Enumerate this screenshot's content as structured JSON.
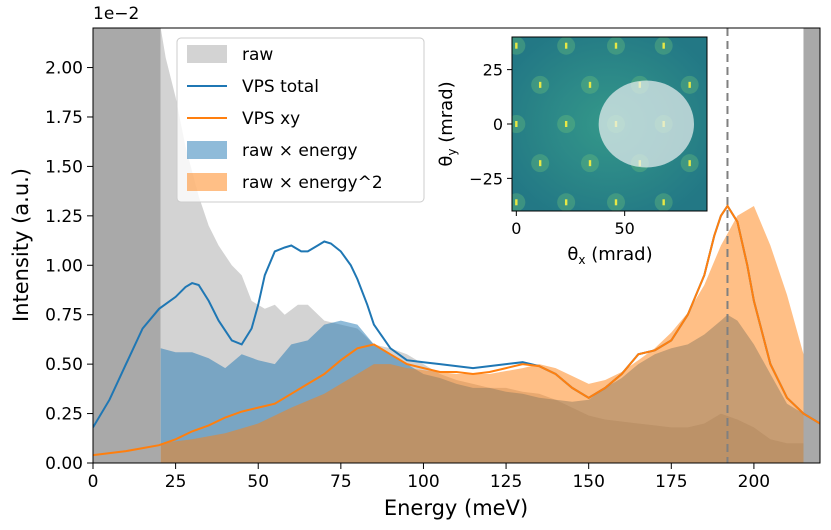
{
  "chart_data": [
    {
      "type": "area",
      "title": "",
      "xlabel": "Energy (meV)",
      "ylabel": "Intensity (a.u.)",
      "offset_text": "1e−2",
      "xlim": [
        0,
        220
      ],
      "ylim": [
        0,
        2.2
      ],
      "xticks": [
        0,
        25,
        50,
        75,
        100,
        125,
        150,
        175,
        200
      ],
      "xtick_labels": [
        "0",
        "25",
        "50",
        "75",
        "100",
        "125",
        "150",
        "175",
        "200"
      ],
      "yticks": [
        0,
        0.25,
        0.5,
        0.75,
        1.0,
        1.25,
        1.5,
        1.75,
        2.0
      ],
      "ytick_labels": [
        "0.00",
        "0.25",
        "0.50",
        "0.75",
        "1.00",
        "1.25",
        "1.50",
        "1.75",
        "2.00"
      ],
      "shaded_regions": [
        [
          0,
          20.5
        ],
        [
          215,
          220
        ]
      ],
      "vline_x": 192,
      "legend_position": "top-left",
      "series": [
        {
          "name": "raw",
          "kind": "fill",
          "color": "#d3d3d3",
          "x": [
            20.5,
            22,
            25,
            28,
            32,
            35,
            38,
            42,
            45,
            48,
            52,
            55,
            58,
            62,
            65,
            70,
            75,
            80,
            85,
            90,
            95,
            100,
            105,
            110,
            115,
            120,
            125,
            130,
            135,
            140,
            145,
            150,
            155,
            160,
            165,
            170,
            175,
            180,
            185,
            190,
            195,
            200,
            205,
            210,
            215
          ],
          "values": [
            2.2,
            2.05,
            1.85,
            1.6,
            1.35,
            1.2,
            1.1,
            1.0,
            0.95,
            0.82,
            0.78,
            0.8,
            0.75,
            0.8,
            0.8,
            0.72,
            0.7,
            0.68,
            0.6,
            0.58,
            0.55,
            0.5,
            0.45,
            0.42,
            0.4,
            0.38,
            0.38,
            0.36,
            0.35,
            0.32,
            0.28,
            0.24,
            0.22,
            0.21,
            0.2,
            0.19,
            0.18,
            0.18,
            0.2,
            0.25,
            0.22,
            0.18,
            0.12,
            0.1,
            0.1
          ]
        },
        {
          "name": "VPS total",
          "kind": "line",
          "color": "#1f77b4",
          "x": [
            0,
            5,
            10,
            15,
            20,
            25,
            28,
            30,
            32,
            35,
            38,
            42,
            45,
            48,
            50,
            52,
            55,
            58,
            60,
            63,
            65,
            68,
            70,
            72,
            75,
            78,
            80,
            83,
            85,
            90,
            95,
            100,
            105,
            110,
            115,
            120,
            125,
            130,
            135,
            140,
            145,
            150,
            155,
            160,
            165,
            170,
            175,
            180,
            185,
            188,
            190,
            192,
            195,
            198,
            200,
            205,
            210,
            215,
            220
          ],
          "values": [
            0.18,
            0.32,
            0.5,
            0.68,
            0.78,
            0.84,
            0.89,
            0.91,
            0.9,
            0.82,
            0.72,
            0.62,
            0.6,
            0.68,
            0.8,
            0.95,
            1.07,
            1.09,
            1.1,
            1.07,
            1.07,
            1.1,
            1.12,
            1.11,
            1.07,
            1.0,
            0.93,
            0.8,
            0.7,
            0.58,
            0.52,
            0.51,
            0.5,
            0.49,
            0.48,
            0.49,
            0.5,
            0.51,
            0.49,
            0.45,
            0.38,
            0.33,
            0.38,
            0.45,
            0.55,
            0.57,
            0.62,
            0.75,
            0.95,
            1.15,
            1.25,
            1.3,
            1.22,
            1.0,
            0.82,
            0.5,
            0.33,
            0.25,
            0.2
          ]
        },
        {
          "name": "VPS xy",
          "kind": "line",
          "color": "#ff7f0e",
          "x": [
            0,
            10,
            20,
            25,
            30,
            35,
            40,
            45,
            50,
            55,
            60,
            65,
            70,
            75,
            80,
            85,
            90,
            95,
            100,
            105,
            110,
            115,
            120,
            125,
            130,
            135,
            140,
            145,
            150,
            155,
            160,
            165,
            170,
            175,
            180,
            185,
            188,
            190,
            192,
            195,
            198,
            200,
            205,
            210,
            215,
            220
          ],
          "values": [
            0.04,
            0.06,
            0.09,
            0.12,
            0.16,
            0.19,
            0.23,
            0.26,
            0.28,
            0.3,
            0.35,
            0.4,
            0.45,
            0.52,
            0.58,
            0.6,
            0.55,
            0.5,
            0.48,
            0.46,
            0.46,
            0.45,
            0.46,
            0.48,
            0.5,
            0.49,
            0.45,
            0.38,
            0.33,
            0.38,
            0.45,
            0.55,
            0.57,
            0.62,
            0.75,
            0.95,
            1.15,
            1.25,
            1.3,
            1.22,
            1.0,
            0.82,
            0.5,
            0.33,
            0.25,
            0.2
          ]
        },
        {
          "name": "raw × energy",
          "kind": "fill",
          "color": "#1f77b4",
          "alpha": 0.5,
          "x": [
            20.5,
            25,
            30,
            35,
            40,
            45,
            50,
            55,
            60,
            65,
            70,
            75,
            80,
            85,
            90,
            95,
            100,
            105,
            110,
            115,
            120,
            125,
            130,
            135,
            140,
            145,
            150,
            155,
            160,
            165,
            170,
            175,
            180,
            185,
            190,
            192,
            195,
            200,
            205,
            210,
            215
          ],
          "values": [
            0.58,
            0.56,
            0.56,
            0.53,
            0.48,
            0.55,
            0.52,
            0.5,
            0.6,
            0.62,
            0.7,
            0.72,
            0.7,
            0.6,
            0.55,
            0.5,
            0.45,
            0.43,
            0.4,
            0.38,
            0.38,
            0.36,
            0.35,
            0.33,
            0.32,
            0.31,
            0.32,
            0.38,
            0.43,
            0.5,
            0.55,
            0.58,
            0.6,
            0.65,
            0.72,
            0.75,
            0.72,
            0.6,
            0.45,
            0.3,
            0.25
          ]
        },
        {
          "name": "raw × energy^2",
          "kind": "fill",
          "color": "#ff7f0e",
          "alpha": 0.5,
          "x": [
            20.5,
            30,
            40,
            50,
            60,
            70,
            75,
            80,
            85,
            90,
            95,
            100,
            110,
            120,
            130,
            135,
            140,
            145,
            150,
            155,
            160,
            165,
            170,
            175,
            180,
            185,
            190,
            195,
            200,
            205,
            210,
            215
          ],
          "values": [
            0.1,
            0.12,
            0.15,
            0.2,
            0.28,
            0.35,
            0.4,
            0.45,
            0.5,
            0.5,
            0.48,
            0.47,
            0.45,
            0.45,
            0.48,
            0.5,
            0.48,
            0.44,
            0.4,
            0.42,
            0.46,
            0.52,
            0.58,
            0.66,
            0.76,
            0.9,
            1.1,
            1.25,
            1.3,
            1.1,
            0.85,
            0.55
          ]
        }
      ]
    },
    {
      "type": "heatmap",
      "xlabel": "θx (mrad)",
      "ylabel": "θy (mrad)",
      "xlabel_symbol": "θ",
      "xlabel_sub": "x",
      "xlabel_unit": " (mrad)",
      "ylabel_symbol": "θ",
      "ylabel_sub": "y",
      "ylabel_unit": " (mrad)",
      "xlim": [
        -2,
        88
      ],
      "ylim": [
        -40,
        40
      ],
      "xticks": [
        0,
        50
      ],
      "xtick_labels": [
        "0",
        "50"
      ],
      "yticks": [
        25,
        0,
        -25
      ],
      "ytick_labels": [
        "25",
        "0",
        "−25"
      ],
      "aperture": {
        "center": [
          60,
          0
        ],
        "radius_x": 22,
        "radius_y": 20
      },
      "background_color": "#2a8a84",
      "spot_color": "#e8e845",
      "spots": [
        [
          0,
          36
        ],
        [
          23,
          36
        ],
        [
          46,
          36
        ],
        [
          68,
          36
        ],
        [
          11,
          18
        ],
        [
          34,
          18
        ],
        [
          57,
          18
        ],
        [
          80,
          18
        ],
        [
          0,
          0
        ],
        [
          23,
          0
        ],
        [
          46,
          0
        ],
        [
          68,
          0
        ],
        [
          11,
          -18
        ],
        [
          34,
          -18
        ],
        [
          57,
          -18
        ],
        [
          80,
          -18
        ],
        [
          0,
          -36
        ],
        [
          23,
          -36
        ],
        [
          46,
          -36
        ],
        [
          68,
          -36
        ]
      ]
    }
  ]
}
